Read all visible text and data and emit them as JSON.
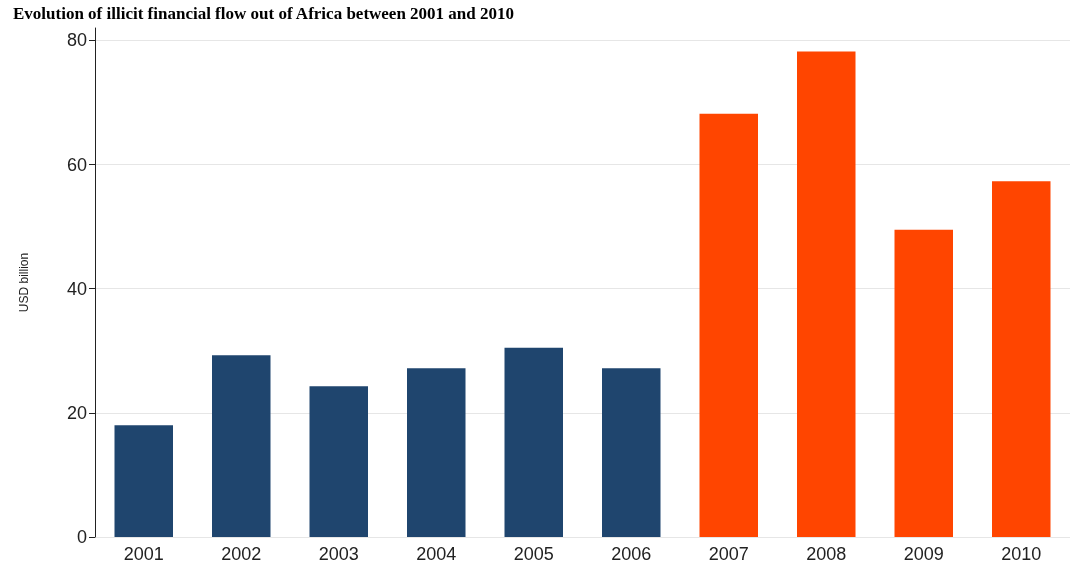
{
  "chart_data": {
    "type": "bar",
    "title": "Evolution of illicit financial flow out of Africa between 2001 and 2010",
    "ylabel": "USD billion",
    "categories": [
      "2001",
      "2002",
      "2003",
      "2004",
      "2005",
      "2006",
      "2007",
      "2008",
      "2009",
      "2010"
    ],
    "values": [
      18,
      29.3,
      24.3,
      27.2,
      30.5,
      27.2,
      68.2,
      78.2,
      49.5,
      57.3
    ],
    "colors": [
      "#1f456e",
      "#1f456e",
      "#1f456e",
      "#1f456e",
      "#1f456e",
      "#1f456e",
      "#ff4500",
      "#ff4500",
      "#ff4500",
      "#ff4500"
    ],
    "ylim": [
      0,
      82
    ],
    "yticks": [
      0,
      20,
      40,
      60,
      80
    ],
    "grid": "y"
  }
}
